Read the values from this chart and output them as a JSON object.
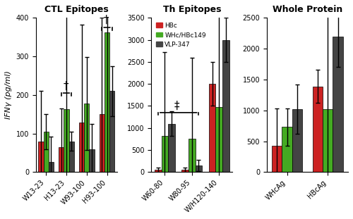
{
  "ctl_categories": [
    "W13-23",
    "H13-23",
    "W93-100",
    "H93-100"
  ],
  "ctl_hbc": [
    80,
    65,
    128,
    150
  ],
  "ctl_whc": [
    105,
    163,
    178,
    362
  ],
  "ctl_vlp": [
    27,
    80,
    60,
    210
  ],
  "ctl_hbc_err": [
    130,
    100,
    255,
    250
  ],
  "ctl_whc_err": [
    45,
    370,
    120,
    370
  ],
  "ctl_vlp_err": [
    65,
    25,
    65,
    65
  ],
  "ctl_ylim": [
    0,
    400
  ],
  "ctl_yticks": [
    0,
    100,
    200,
    300,
    400
  ],
  "ctl_title": "CTL Epitopes",
  "th_categories": [
    "W60-80",
    "W80-95",
    "W/H120-140"
  ],
  "th_hbc": [
    50,
    50,
    2000
  ],
  "th_whc": [
    820,
    750,
    1470
  ],
  "th_vlp": [
    1100,
    150,
    3000
  ],
  "th_hbc_err": [
    50,
    50,
    500
  ],
  "th_whc_err": [
    1900,
    1850,
    2450
  ],
  "th_vlp_err": [
    280,
    120,
    500
  ],
  "th_ylim": [
    0,
    3500
  ],
  "th_yticks": [
    0,
    500,
    1000,
    1500,
    2000,
    2500,
    3000,
    3500
  ],
  "th_title": "Th Epitopes",
  "wp_categories": [
    "WHcAg",
    "HBcAg"
  ],
  "wp_hbc": [
    430,
    1390
  ],
  "wp_whc": [
    730,
    1020
  ],
  "wp_vlp": [
    1020,
    2200
  ],
  "wp_hbc_err": [
    600,
    270
  ],
  "wp_whc_err": [
    300,
    1800
  ],
  "wp_vlp_err": [
    400,
    500
  ],
  "wp_ylim": [
    0,
    2500
  ],
  "wp_yticks": [
    0,
    500,
    1000,
    1500,
    2000,
    2500
  ],
  "wp_title": "Whole Protein",
  "color_hbc": "#cc2222",
  "color_whc": "#44aa22",
  "color_vlp": "#444444",
  "ylabel": "IFNγ (pg/ml)",
  "legend_labels": [
    "HBc",
    "WHc/HBc149",
    "VLP-347"
  ],
  "bar_width": 0.25,
  "background_color": "#ffffff"
}
